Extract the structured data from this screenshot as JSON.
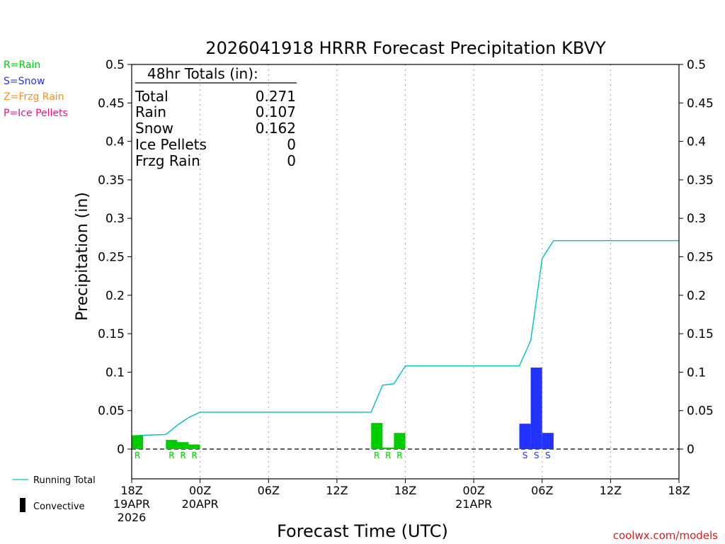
{
  "chart_data": {
    "type": "bar",
    "title": "2026041918 HRRR Forecast Precipitation KBVY",
    "xlabel": "Forecast Time (UTC)",
    "ylabel": "Precipitation (in)",
    "ylim": [
      0,
      0.5
    ],
    "xlim_hours": [
      0,
      48
    ],
    "y_ticks": [
      "0",
      "0.05",
      "0.1",
      "0.15",
      "0.2",
      "0.25",
      "0.3",
      "0.35",
      "0.4",
      "0.45",
      "0.5"
    ],
    "y_tick_values": [
      0,
      0.05,
      0.1,
      0.15,
      0.2,
      0.25,
      0.3,
      0.35,
      0.4,
      0.45,
      0.5
    ],
    "x_ticks": [
      {
        "hour": 0,
        "lines": [
          "18Z",
          "19APR",
          "2026"
        ]
      },
      {
        "hour": 6,
        "lines": [
          "00Z",
          "20APR"
        ]
      },
      {
        "hour": 12,
        "lines": [
          "06Z"
        ]
      },
      {
        "hour": 18,
        "lines": [
          "12Z"
        ]
      },
      {
        "hour": 24,
        "lines": [
          "18Z"
        ]
      },
      {
        "hour": 30,
        "lines": [
          "00Z",
          "21APR"
        ]
      },
      {
        "hour": 36,
        "lines": [
          "06Z"
        ]
      },
      {
        "hour": 42,
        "lines": [
          "12Z"
        ]
      },
      {
        "hour": 48,
        "lines": [
          "18Z"
        ]
      }
    ],
    "bars": [
      {
        "hour": 1,
        "value": 0.018,
        "type": "R"
      },
      {
        "hour": 4,
        "value": 0.012,
        "type": "R"
      },
      {
        "hour": 5,
        "value": 0.009,
        "type": "R"
      },
      {
        "hour": 6,
        "value": 0.006,
        "type": "R"
      },
      {
        "hour": 22,
        "value": 0.034,
        "type": "R"
      },
      {
        "hour": 23,
        "value": 0.002,
        "type": "R"
      },
      {
        "hour": 24,
        "value": 0.021,
        "type": "R"
      },
      {
        "hour": 35,
        "value": 0.033,
        "type": "S"
      },
      {
        "hour": 36,
        "value": 0.106,
        "type": "S"
      },
      {
        "hour": 37,
        "value": 0.021,
        "type": "S"
      }
    ],
    "running_total": {
      "name": "Running Total",
      "x": [
        0,
        1,
        3,
        4,
        5,
        6,
        7,
        8,
        9,
        10,
        11,
        12,
        13,
        14,
        15,
        16,
        17,
        18,
        19,
        20,
        21,
        22,
        23,
        24,
        25,
        26,
        27,
        28,
        29,
        30,
        31,
        32,
        33,
        34,
        35,
        36,
        37,
        38,
        39,
        40,
        41,
        42,
        43,
        44,
        45,
        46,
        47,
        48
      ],
      "y": [
        0.017,
        0.018,
        0.019,
        0.031,
        0.041,
        0.048,
        0.048,
        0.048,
        0.048,
        0.048,
        0.048,
        0.048,
        0.048,
        0.048,
        0.048,
        0.048,
        0.048,
        0.048,
        0.048,
        0.048,
        0.048,
        0.083,
        0.085,
        0.108,
        0.108,
        0.108,
        0.108,
        0.108,
        0.108,
        0.108,
        0.108,
        0.108,
        0.108,
        0.108,
        0.141,
        0.248,
        0.271,
        0.271,
        0.271,
        0.271,
        0.271,
        0.271,
        0.271,
        0.271,
        0.271,
        0.271,
        0.271,
        0.271
      ]
    },
    "colors": {
      "rain": "#00cc00",
      "snow": "#2233ff",
      "frzg_rain": "#ff8c1a",
      "ice_pellets": "#ee1188",
      "running_total": "#00c0c8",
      "grid": "#b0b0b0"
    }
  },
  "totals": {
    "header": "48hr Totals (in):",
    "rows": [
      {
        "label": "Total",
        "value": "0.271"
      },
      {
        "label": "Rain",
        "value": "0.107"
      },
      {
        "label": "Snow",
        "value": "0.162"
      },
      {
        "label": "Ice Pellets",
        "value": "0"
      },
      {
        "label": "Frzg Rain",
        "value": "0"
      }
    ]
  },
  "type_legend": {
    "rain": "R=Rain",
    "snow": "S=Snow",
    "frzg_rain": "Z=Frzg Rain",
    "ice_pellets": "P=Ice Pellets"
  },
  "bottom_legend": {
    "running_total": "Running Total",
    "convective": "Convective"
  },
  "credit": "coolwx.com/models"
}
